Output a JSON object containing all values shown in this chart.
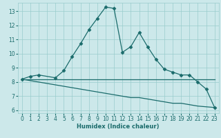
{
  "xlabel": "Humidex (Indice chaleur)",
  "bg_color": "#cce8ea",
  "grid_color": "#99cccc",
  "line_color": "#1a6b6b",
  "xlim": [
    -0.5,
    23.5
  ],
  "ylim": [
    5.8,
    13.6
  ],
  "xticks": [
    0,
    1,
    2,
    3,
    4,
    5,
    6,
    7,
    8,
    9,
    10,
    11,
    12,
    13,
    14,
    15,
    16,
    17,
    18,
    19,
    20,
    21,
    22,
    23
  ],
  "yticks": [
    6,
    7,
    8,
    9,
    10,
    11,
    12,
    13
  ],
  "line_peaked_x": [
    0,
    1,
    2,
    4,
    5,
    6,
    7,
    8,
    9,
    10,
    11,
    12,
    13,
    14,
    15,
    16,
    17,
    18,
    19,
    20,
    21,
    22,
    23
  ],
  "line_peaked_y": [
    8.2,
    8.4,
    8.5,
    8.3,
    8.8,
    9.8,
    10.7,
    11.7,
    12.5,
    13.3,
    13.2,
    10.1,
    10.5,
    11.5,
    10.5,
    9.6,
    8.9,
    8.7,
    8.5,
    8.5,
    8.0,
    7.5,
    6.2
  ],
  "line_flat_x": [
    0,
    1,
    2,
    3,
    4,
    5,
    6,
    7,
    8,
    9,
    10,
    11,
    12,
    13,
    14,
    15,
    16,
    17,
    18,
    19,
    20,
    21,
    22,
    23
  ],
  "line_flat_y": [
    8.2,
    8.2,
    8.2,
    8.2,
    8.2,
    8.2,
    8.2,
    8.2,
    8.2,
    8.2,
    8.2,
    8.2,
    8.2,
    8.2,
    8.2,
    8.2,
    8.2,
    8.2,
    8.2,
    8.2,
    8.2,
    8.2,
    8.2,
    8.2
  ],
  "line_decline_x": [
    0,
    1,
    2,
    3,
    4,
    5,
    6,
    7,
    8,
    9,
    10,
    11,
    12,
    13,
    14,
    15,
    16,
    17,
    18,
    19,
    20,
    21,
    22,
    23
  ],
  "line_decline_y": [
    8.2,
    8.1,
    8.0,
    7.9,
    7.8,
    7.7,
    7.6,
    7.5,
    7.4,
    7.3,
    7.2,
    7.1,
    7.0,
    6.9,
    6.9,
    6.8,
    6.7,
    6.6,
    6.5,
    6.5,
    6.4,
    6.3,
    6.25,
    6.2
  ],
  "marker": "D",
  "markersize": 2.5,
  "tick_labelsize": 5.5,
  "xlabel_fontsize": 6
}
